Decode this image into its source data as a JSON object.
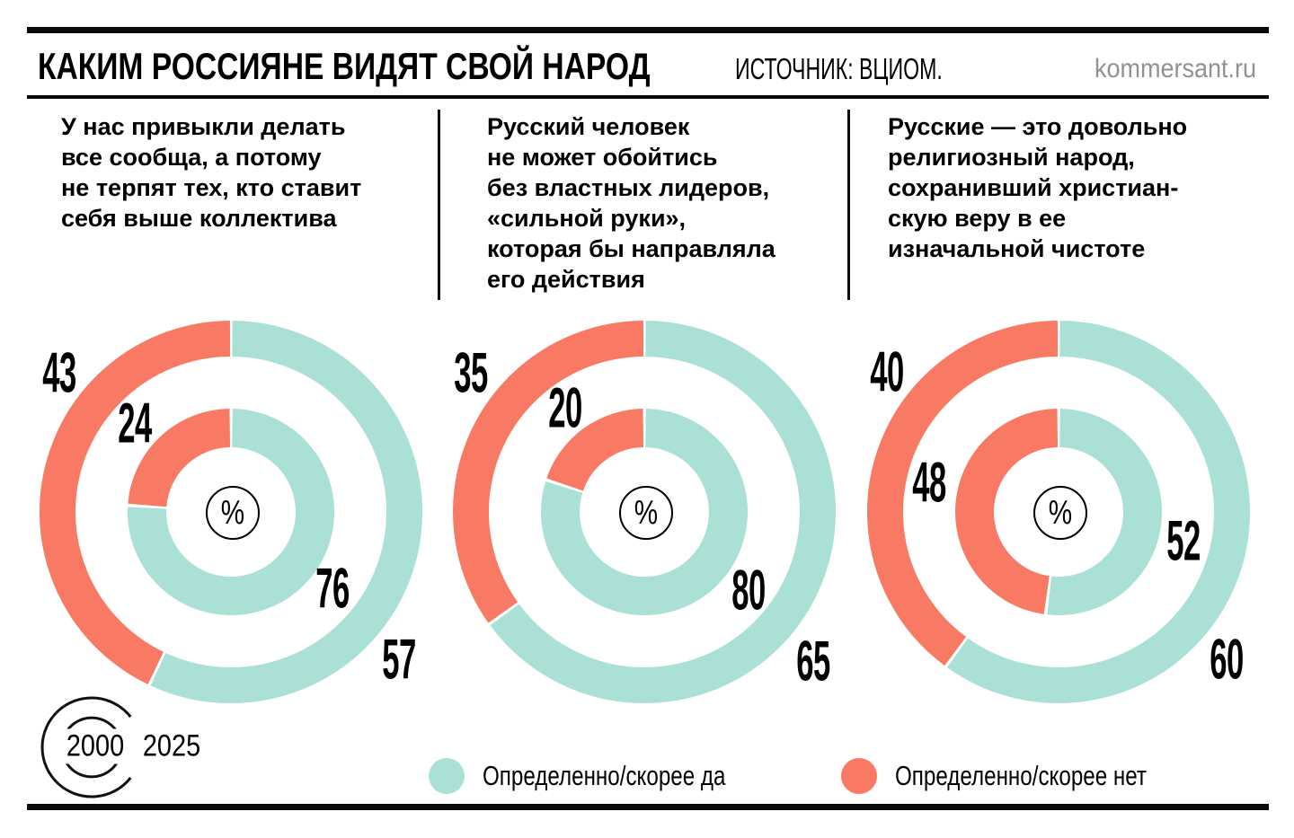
{
  "header": {
    "title": "КАКИМ РОССИЯНЕ ВИДЯТ СВОЙ НАРОД",
    "source": "ИСТОЧНИК: ВЦИОМ.",
    "site": "kommersant.ru"
  },
  "colors": {
    "yes": "#abe0d6",
    "no": "#f87a64"
  },
  "legend": {
    "yes_label": "Определенно/скорее да",
    "no_label": "Определенно/скорее нет"
  },
  "rings_key": {
    "inner_year": "2000",
    "outer_year": "2025"
  },
  "center_symbol": "%",
  "chart_data": [
    {
      "type": "donut",
      "units": "%",
      "question": "У нас привыкли делать\nвсе сообща, а потому\nне терпят тех, кто ставит\nсебя выше коллектива",
      "series_labels": {
        "yes": "Определенно/скорее да",
        "no": "Определенно/скорее нет"
      },
      "rings": [
        {
          "year": "2000",
          "position": "inner",
          "yes": 76,
          "no": 24
        },
        {
          "year": "2025",
          "position": "outer",
          "yes": 57,
          "no": 43
        }
      ]
    },
    {
      "type": "donut",
      "units": "%",
      "question": "Русский человек\nне может обойтись\nбез властных лидеров,\n«сильной руки»,\nкоторая бы направляла\nего действия",
      "series_labels": {
        "yes": "Определенно/скорее да",
        "no": "Определенно/скорее нет"
      },
      "rings": [
        {
          "year": "2000",
          "position": "inner",
          "yes": 80,
          "no": 20
        },
        {
          "year": "2025",
          "position": "outer",
          "yes": 65,
          "no": 35
        }
      ]
    },
    {
      "type": "donut",
      "units": "%",
      "question": "Русские — это довольно\nрелигиозный народ,\nсохранивший христиан-\nскую веру в ее\nизначальной чистоте",
      "series_labels": {
        "yes": "Определенно/скорее да",
        "no": "Определенно/скорее нет"
      },
      "rings": [
        {
          "year": "2000",
          "position": "inner",
          "yes": 52,
          "no": 48
        },
        {
          "year": "2025",
          "position": "outer",
          "yes": 60,
          "no": 40
        }
      ]
    }
  ]
}
